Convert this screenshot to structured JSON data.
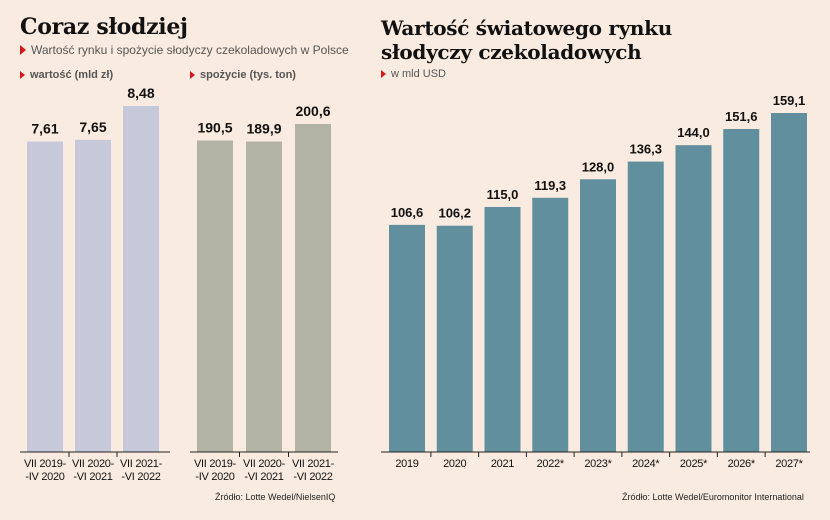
{
  "left": {
    "title": "Coraz słodziej",
    "subtitle": "Wartość rynku i spożycie słodyczy czekoladowych w Polsce",
    "source": "Źródło: Lotte Wedel/NielsenIQ"
  },
  "right": {
    "title": "Wartość światowego rynku słodyczy czekoladowych",
    "unit": "w mld USD",
    "source": "Źródło: Lotte Wedel/Euromonitor International"
  },
  "colors": {
    "background": "#f9ebe0",
    "value_bars": "#c5c9da",
    "consumption_bars": "#b3b3a5",
    "global_bars": "#628f9d",
    "accent": "#d7191c"
  },
  "chart_data": [
    {
      "type": "bar",
      "series_label": "wartość (mld zł)",
      "categories": [
        [
          "VII 2019-",
          "-IV 2020"
        ],
        [
          "VII 2020-",
          "-VI 2021"
        ],
        [
          "VII 2021-",
          "-VI 2022"
        ]
      ],
      "values": [
        7.61,
        7.65,
        8.48
      ],
      "value_labels": [
        "7,61",
        "7,65",
        "8,48"
      ],
      "ylim": [
        0,
        8.7
      ],
      "grid": false
    },
    {
      "type": "bar",
      "series_label": "spożycie (tys. ton)",
      "categories": [
        [
          "VII 2019-",
          "-IV 2020"
        ],
        [
          "VII 2020-",
          "-VI 2021"
        ],
        [
          "VII 2021-",
          "-VI 2022"
        ]
      ],
      "values": [
        190.5,
        189.9,
        200.6
      ],
      "value_labels": [
        "190,5",
        "189,9",
        "200,6"
      ],
      "ylim": [
        0,
        205
      ],
      "grid": false
    },
    {
      "type": "bar",
      "categories": [
        "2019",
        "2020",
        "2021",
        "2022*",
        "2023*",
        "2024*",
        "2025*",
        "2026*",
        "2027*"
      ],
      "values": [
        106.6,
        106.2,
        115.0,
        119.3,
        128.0,
        136.3,
        144.0,
        151.6,
        159.1
      ],
      "value_labels": [
        "106,6",
        "106,2",
        "115,0",
        "119,3",
        "128,0",
        "136,3",
        "144,0",
        "151,6",
        "159,1"
      ],
      "ylim": [
        0,
        162
      ],
      "grid": false
    }
  ]
}
